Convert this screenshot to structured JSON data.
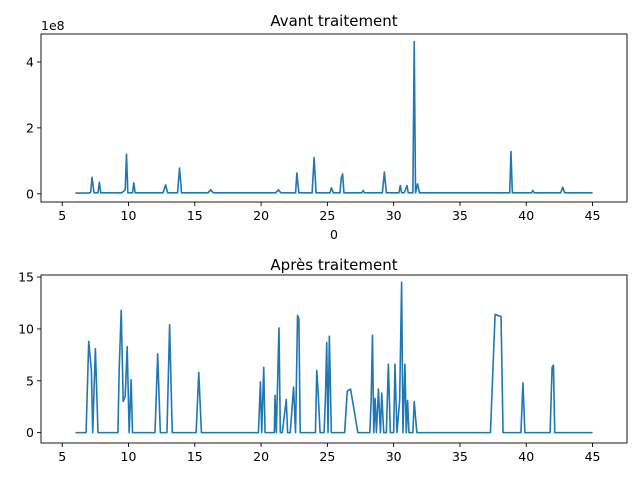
{
  "chart_data": [
    {
      "type": "line",
      "title": "Avant traitement",
      "xlabel": "0",
      "ylabel": "",
      "y_multiplier_label": "1e8",
      "xlim": [
        3.4,
        47.6
      ],
      "ylim": [
        -0.25,
        4.85
      ],
      "xticks": [
        5,
        10,
        15,
        20,
        25,
        30,
        35,
        40,
        45
      ],
      "xtick_labels": [
        "5",
        "10",
        "15",
        "20",
        "25",
        "30",
        "35",
        "40",
        "45"
      ],
      "yticks": [
        0,
        2,
        4
      ],
      "ytick_labels": [
        "0",
        "2",
        "4"
      ],
      "grid": false,
      "series": [
        {
          "color": "#1f77b4",
          "x": [
            6.0,
            7.0,
            7.15,
            7.25,
            7.4,
            7.7,
            7.8,
            7.9,
            9.5,
            9.75,
            9.85,
            9.95,
            10.3,
            10.4,
            10.5,
            11.0,
            12.6,
            12.8,
            12.95,
            13.7,
            13.85,
            14.0,
            16.0,
            16.2,
            16.4,
            21.1,
            21.3,
            21.5,
            22.6,
            22.7,
            22.85,
            23.85,
            24.0,
            24.15,
            25.2,
            25.3,
            25.45,
            25.95,
            26.05,
            26.15,
            26.25,
            27.6,
            27.7,
            27.8,
            29.15,
            29.3,
            29.45,
            30.4,
            30.5,
            30.6,
            30.8,
            31.0,
            31.1,
            31.45,
            31.55,
            31.65,
            31.8,
            31.95,
            32.2,
            37.0,
            38.75,
            38.85,
            38.95,
            40.4,
            40.5,
            40.6,
            42.6,
            42.75,
            42.9,
            45.0
          ],
          "y": [
            0.02,
            0.02,
            0.05,
            0.5,
            0.03,
            0.03,
            0.35,
            0.03,
            0.03,
            0.12,
            1.2,
            0.03,
            0.03,
            0.33,
            0.03,
            0.03,
            0.03,
            0.27,
            0.03,
            0.03,
            0.78,
            0.03,
            0.03,
            0.12,
            0.03,
            0.03,
            0.12,
            0.03,
            0.03,
            0.63,
            0.03,
            0.03,
            1.1,
            0.03,
            0.03,
            0.18,
            0.03,
            0.03,
            0.48,
            0.6,
            0.03,
            0.03,
            0.1,
            0.03,
            0.03,
            0.66,
            0.03,
            0.03,
            0.25,
            0.03,
            0.03,
            0.25,
            0.03,
            0.03,
            4.62,
            0.03,
            0.3,
            0.03,
            0.03,
            0.03,
            0.03,
            1.28,
            0.03,
            0.03,
            0.1,
            0.03,
            0.03,
            0.2,
            0.03,
            0.03
          ]
        }
      ]
    },
    {
      "type": "line",
      "title": "Après traitement",
      "xlabel": "",
      "ylabel": "",
      "xlim": [
        3.4,
        47.6
      ],
      "ylim": [
        -1.0,
        15.2
      ],
      "xticks": [
        5,
        10,
        15,
        20,
        25,
        30,
        35,
        40,
        45
      ],
      "xtick_labels": [
        "5",
        "10",
        "15",
        "20",
        "25",
        "30",
        "35",
        "40",
        "45"
      ],
      "yticks": [
        0,
        5,
        10,
        15
      ],
      "ytick_labels": [
        "0",
        "5",
        "10",
        "15"
      ],
      "grid": false,
      "series": [
        {
          "color": "#1f77b4",
          "x": [
            6.0,
            6.8,
            7.0,
            7.2,
            7.3,
            7.5,
            7.7,
            9.2,
            9.3,
            9.45,
            9.6,
            9.75,
            9.9,
            10.05,
            10.2,
            10.3,
            10.45,
            12.0,
            12.2,
            12.4,
            12.9,
            13.1,
            13.3,
            15.1,
            15.3,
            15.5,
            19.8,
            19.95,
            20.05,
            20.2,
            20.3,
            21.0,
            21.05,
            21.15,
            21.35,
            21.45,
            21.6,
            21.9,
            22.0,
            22.2,
            22.45,
            22.6,
            22.75,
            22.85,
            22.95,
            23.1,
            24.1,
            24.2,
            24.3,
            24.45,
            24.75,
            24.85,
            24.95,
            25.05,
            25.15,
            25.3,
            25.35,
            26.3,
            26.5,
            26.75,
            27.3,
            28.2,
            28.3,
            28.4,
            28.5,
            28.6,
            28.7,
            28.85,
            29.0,
            29.1,
            29.25,
            29.45,
            29.6,
            29.75,
            30.0,
            30.1,
            30.25,
            30.45,
            30.6,
            30.7,
            30.85,
            30.95,
            31.05,
            31.15,
            31.45,
            31.55,
            31.75,
            37.3,
            37.65,
            38.1,
            38.25,
            39.6,
            39.75,
            39.9,
            41.8,
            41.95,
            42.05,
            42.15,
            45.0
          ],
          "y": [
            0,
            0,
            8.8,
            6.0,
            0,
            8.1,
            0,
            0,
            6.2,
            11.8,
            3.0,
            3.5,
            8.3,
            0,
            5.1,
            0,
            0,
            0,
            7.6,
            0,
            0,
            10.4,
            0,
            0,
            5.8,
            0,
            0,
            4.9,
            0,
            6.3,
            0,
            0,
            3.6,
            0,
            10.1,
            0,
            0,
            3.2,
            0,
            0,
            4.4,
            0,
            11.3,
            11.0,
            0,
            0,
            0,
            6.0,
            4.0,
            0,
            0,
            3.2,
            8.7,
            0,
            9.3,
            0,
            0,
            0,
            4.0,
            4.2,
            0,
            0,
            3.0,
            9.4,
            0,
            3.3,
            0,
            4.2,
            0,
            3.8,
            0,
            0,
            6.6,
            0,
            0,
            6.6,
            0,
            3.1,
            14.5,
            0,
            6.6,
            0,
            3.1,
            0,
            0,
            3.0,
            0,
            0,
            11.4,
            11.2,
            0,
            0,
            4.8,
            0,
            0,
            6.3,
            6.5,
            0,
            0
          ]
        }
      ]
    }
  ]
}
